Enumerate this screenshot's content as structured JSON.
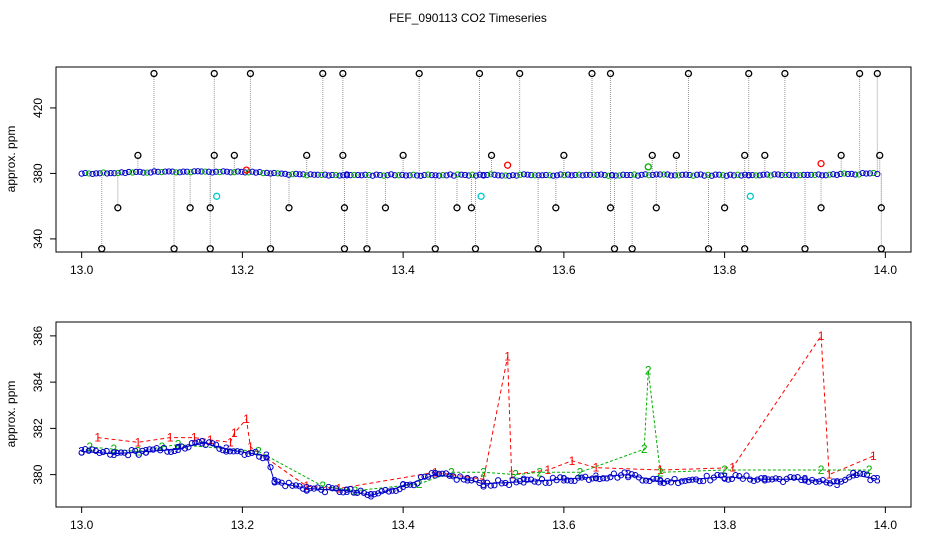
{
  "chart_data": [
    {
      "type": "scatter",
      "title": "FEF_090113  CO2 Timeseries",
      "xlabel": "",
      "ylabel": "approx. ppm",
      "xlim": [
        13.0,
        14.0
      ],
      "ylim": [
        332,
        445
      ],
      "x_ticks": [
        13.0,
        13.2,
        13.4,
        13.6,
        13.8,
        14.0
      ],
      "x_tick_labels": [
        "13.0",
        "13.2",
        "13.4",
        "13.6",
        "13.8",
        "14.0"
      ],
      "y_ticks": [
        340,
        380,
        420
      ],
      "y_tick_labels": [
        "340",
        "380",
        "420"
      ],
      "grid": false,
      "baseline_segments": [
        {
          "x": [
            13.0,
            13.1,
            13.16,
            13.2,
            13.24,
            13.28,
            13.33
          ],
          "y": [
            380,
            381,
            381,
            381,
            380,
            379,
            379
          ]
        },
        {
          "x": [
            13.33,
            13.4,
            13.45,
            13.5
          ],
          "y": [
            379,
            379,
            379,
            379
          ]
        },
        {
          "x": [
            13.5,
            13.6,
            13.66
          ],
          "y": [
            379,
            379,
            379
          ]
        },
        {
          "x": [
            13.66,
            13.75,
            13.83
          ],
          "y": [
            379,
            379,
            379
          ]
        },
        {
          "x": [
            13.83,
            13.9,
            13.99
          ],
          "y": [
            379,
            379,
            380
          ]
        }
      ],
      "spikes_high": [
        13.09,
        13.165,
        13.21,
        13.3,
        13.325,
        13.42,
        13.495,
        13.545,
        13.635,
        13.658,
        13.755,
        13.83,
        13.875,
        13.968,
        13.99
      ],
      "spikes_low": [
        13.025,
        13.115,
        13.16,
        13.235,
        13.327,
        13.355,
        13.44,
        13.49,
        13.568,
        13.663,
        13.685,
        13.78,
        13.825,
        13.9,
        13.995
      ],
      "mid_high": [
        13.07,
        13.165,
        13.19,
        13.28,
        13.325,
        13.4,
        13.51,
        13.6,
        13.71,
        13.74,
        13.825,
        13.85,
        13.945,
        13.993
      ],
      "mid_low": [
        13.045,
        13.135,
        13.16,
        13.258,
        13.327,
        13.378,
        13.467,
        13.485,
        13.59,
        13.658,
        13.715,
        13.8,
        13.92,
        13.995
      ],
      "cyan_points": [
        {
          "x": 13.168,
          "y": 366
        },
        {
          "x": 13.497,
          "y": 366
        },
        {
          "x": 13.832,
          "y": 366
        }
      ],
      "red_points": [
        {
          "x": 13.205,
          "y": 382
        },
        {
          "x": 13.53,
          "y": 385
        },
        {
          "x": 13.92,
          "y": 386
        }
      ],
      "green_points": [
        {
          "x": 13.705,
          "y": 384
        }
      ]
    },
    {
      "type": "line",
      "title": "",
      "xlabel": "",
      "ylabel": "approx. ppm",
      "xlim": [
        13.0,
        14.0
      ],
      "ylim": [
        378.6,
        386.6
      ],
      "x_ticks": [
        13.0,
        13.2,
        13.4,
        13.6,
        13.8,
        14.0
      ],
      "x_tick_labels": [
        "13.0",
        "13.2",
        "13.4",
        "13.6",
        "13.8",
        "14.0"
      ],
      "y_ticks": [
        380,
        382,
        384,
        386
      ],
      "y_tick_labels": [
        "380",
        "382",
        "384",
        "386"
      ],
      "grid": false,
      "series": [
        {
          "marker": "1",
          "color": "#ff0000",
          "points": [
            [
              13.02,
              381.6
            ],
            [
              13.07,
              381.4
            ],
            [
              13.11,
              381.6
            ],
            [
              13.14,
              381.6
            ],
            [
              13.16,
              381.5
            ],
            [
              13.185,
              381.4
            ],
            [
              13.19,
              381.8
            ],
            [
              13.205,
              382.4
            ],
            [
              13.21,
              381.2
            ],
            [
              13.28,
              379.5
            ],
            [
              13.32,
              379.4
            ],
            [
              13.44,
              380.1
            ],
            [
              13.5,
              379.8
            ],
            [
              13.53,
              385.1
            ],
            [
              13.535,
              380.0
            ],
            [
              13.58,
              380.2
            ],
            [
              13.61,
              380.6
            ],
            [
              13.64,
              380.3
            ],
            [
              13.72,
              380.2
            ],
            [
              13.81,
              380.3
            ],
            [
              13.92,
              386.0
            ],
            [
              13.93,
              380.0
            ],
            [
              13.985,
              380.8
            ]
          ]
        },
        {
          "marker": "2",
          "color": "#00b000",
          "points": [
            [
              13.01,
              381.2
            ],
            [
              13.04,
              381.1
            ],
            [
              13.07,
              381.0
            ],
            [
              13.1,
              381.2
            ],
            [
              13.12,
              381.3
            ],
            [
              13.22,
              381.0
            ],
            [
              13.3,
              379.5
            ],
            [
              13.34,
              379.3
            ],
            [
              13.42,
              379.6
            ],
            [
              13.46,
              380.1
            ],
            [
              13.5,
              380.1
            ],
            [
              13.54,
              380.0
            ],
            [
              13.57,
              380.1
            ],
            [
              13.62,
              380.1
            ],
            [
              13.7,
              381.1
            ],
            [
              13.705,
              384.5
            ],
            [
              13.72,
              380.1
            ],
            [
              13.8,
              380.2
            ],
            [
              13.92,
              380.2
            ],
            [
              13.98,
              380.2
            ]
          ]
        },
        {
          "marker": "3",
          "color": "#0000c8",
          "points": [
            [
              13.0,
              381.0
            ],
            [
              13.04,
              380.9
            ],
            [
              13.08,
              381.0
            ],
            [
              13.12,
              381.1
            ],
            [
              13.15,
              381.4
            ],
            [
              13.18,
              381.1
            ],
            [
              13.23,
              380.8
            ],
            [
              13.24,
              379.7
            ],
            [
              13.28,
              379.4
            ],
            [
              13.33,
              379.3
            ],
            [
              13.36,
              379.1
            ],
            [
              13.4,
              379.5
            ],
            [
              13.44,
              380.0
            ],
            [
              13.48,
              379.8
            ],
            [
              13.5,
              379.6
            ],
            [
              13.55,
              379.7
            ],
            [
              13.6,
              379.8
            ],
            [
              13.64,
              379.9
            ],
            [
              13.68,
              380.0
            ],
            [
              13.72,
              379.7
            ],
            [
              13.8,
              379.9
            ],
            [
              13.85,
              379.8
            ],
            [
              13.9,
              379.8
            ],
            [
              13.94,
              379.6
            ],
            [
              13.96,
              380.0
            ],
            [
              13.99,
              379.8
            ]
          ]
        }
      ]
    }
  ],
  "colors": {
    "black": "#000000",
    "red": "#ff0000",
    "green": "#00b000",
    "blue": "#0000c8",
    "cyan": "#00c8c8",
    "grey": "#999999"
  }
}
